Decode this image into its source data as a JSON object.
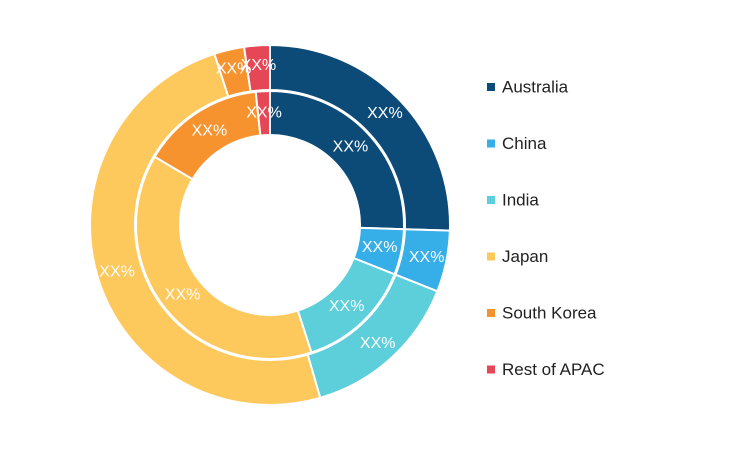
{
  "chart_data": {
    "type": "pie",
    "title": "",
    "legend_position": "right",
    "categories": [
      "Australia",
      "China",
      "India",
      "Japan",
      "South Korea",
      "Rest of APAC"
    ],
    "colors": [
      "#0c4b78",
      "#36aee8",
      "#5ccfdb",
      "#fdc95c",
      "#f7932f",
      "#e54756"
    ],
    "series": [
      {
        "ring": "outer",
        "values": [
          25.5,
          5.5,
          14.5,
          49.5,
          2.7,
          2.3
        ],
        "labels": [
          "XX%",
          "XX%",
          "XX%",
          "XX%",
          "XX%",
          "XX%"
        ]
      },
      {
        "ring": "inner",
        "values": [
          25.5,
          5.5,
          14.0,
          38.5,
          14.8,
          1.7
        ],
        "labels": [
          "XX%",
          "XX%",
          "XX%",
          "XX%",
          "XX%",
          "XX%"
        ]
      }
    ]
  }
}
